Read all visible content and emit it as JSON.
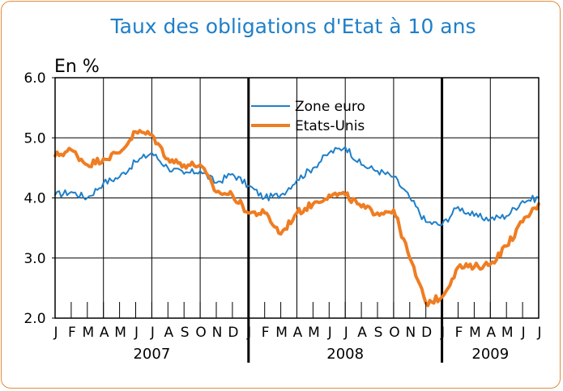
{
  "title": "Taux des obligations d'Etat à 10 ans",
  "unit_label": "En %",
  "chart_data": {
    "type": "line",
    "title": "Taux des obligations d'Etat à 10 ans",
    "ylabel": "En %",
    "ylim": [
      2.0,
      6.0
    ],
    "yticks": [
      "2.0",
      "3.0",
      "4.0",
      "5.0",
      "6.0"
    ],
    "xlim": [
      "2007-01",
      "2009-07"
    ],
    "month_labels": [
      "J",
      "F",
      "M",
      "A",
      "M",
      "J",
      "J",
      "A",
      "S",
      "O",
      "N",
      "D",
      "J",
      "F",
      "M",
      "A",
      "M",
      "J",
      "J",
      "A",
      "S",
      "O",
      "N",
      "D",
      "J",
      "F",
      "M",
      "A",
      "M",
      "J",
      "J"
    ],
    "years": [
      "2007",
      "2008",
      "2009"
    ],
    "grid": true,
    "legend_position": "top-center",
    "series": [
      {
        "name": "Zone euro",
        "color": "#1f7fc8",
        "x": [
          "2007-01",
          "2007-02",
          "2007-03",
          "2007-04",
          "2007-05",
          "2007-06",
          "2007-07",
          "2007-08",
          "2007-09",
          "2007-10",
          "2007-11",
          "2007-12",
          "2008-01",
          "2008-02",
          "2008-03",
          "2008-04",
          "2008-05",
          "2008-06",
          "2008-07",
          "2008-08",
          "2008-09",
          "2008-10",
          "2008-11",
          "2008-12",
          "2009-01",
          "2009-02",
          "2009-03",
          "2009-04",
          "2009-05",
          "2009-06",
          "2009-07"
        ],
        "values": [
          4.05,
          4.1,
          4.0,
          4.25,
          4.35,
          4.6,
          4.75,
          4.5,
          4.4,
          4.45,
          4.25,
          4.4,
          4.2,
          4.0,
          4.05,
          4.3,
          4.5,
          4.75,
          4.85,
          4.55,
          4.45,
          4.35,
          4.0,
          3.6,
          3.55,
          3.85,
          3.7,
          3.65,
          3.7,
          3.95,
          4.0
        ]
      },
      {
        "name": "Etats-Unis",
        "color": "#ef7d22",
        "x": [
          "2007-01",
          "2007-02",
          "2007-03",
          "2007-04",
          "2007-05",
          "2007-06",
          "2007-07",
          "2007-08",
          "2007-09",
          "2007-10",
          "2007-11",
          "2007-12",
          "2008-01",
          "2008-02",
          "2008-03",
          "2008-04",
          "2008-05",
          "2008-06",
          "2008-07",
          "2008-08",
          "2008-09",
          "2008-10",
          "2008-11",
          "2008-12",
          "2009-01",
          "2009-02",
          "2009-03",
          "2009-04",
          "2009-05",
          "2009-06",
          "2009-07"
        ],
        "values": [
          4.7,
          4.8,
          4.55,
          4.65,
          4.75,
          5.1,
          5.05,
          4.65,
          4.55,
          4.55,
          4.1,
          4.05,
          3.75,
          3.75,
          3.4,
          3.75,
          3.9,
          4.05,
          4.05,
          3.85,
          3.75,
          3.8,
          3.0,
          2.25,
          2.35,
          2.85,
          2.85,
          2.9,
          3.2,
          3.6,
          3.9
        ]
      }
    ]
  }
}
